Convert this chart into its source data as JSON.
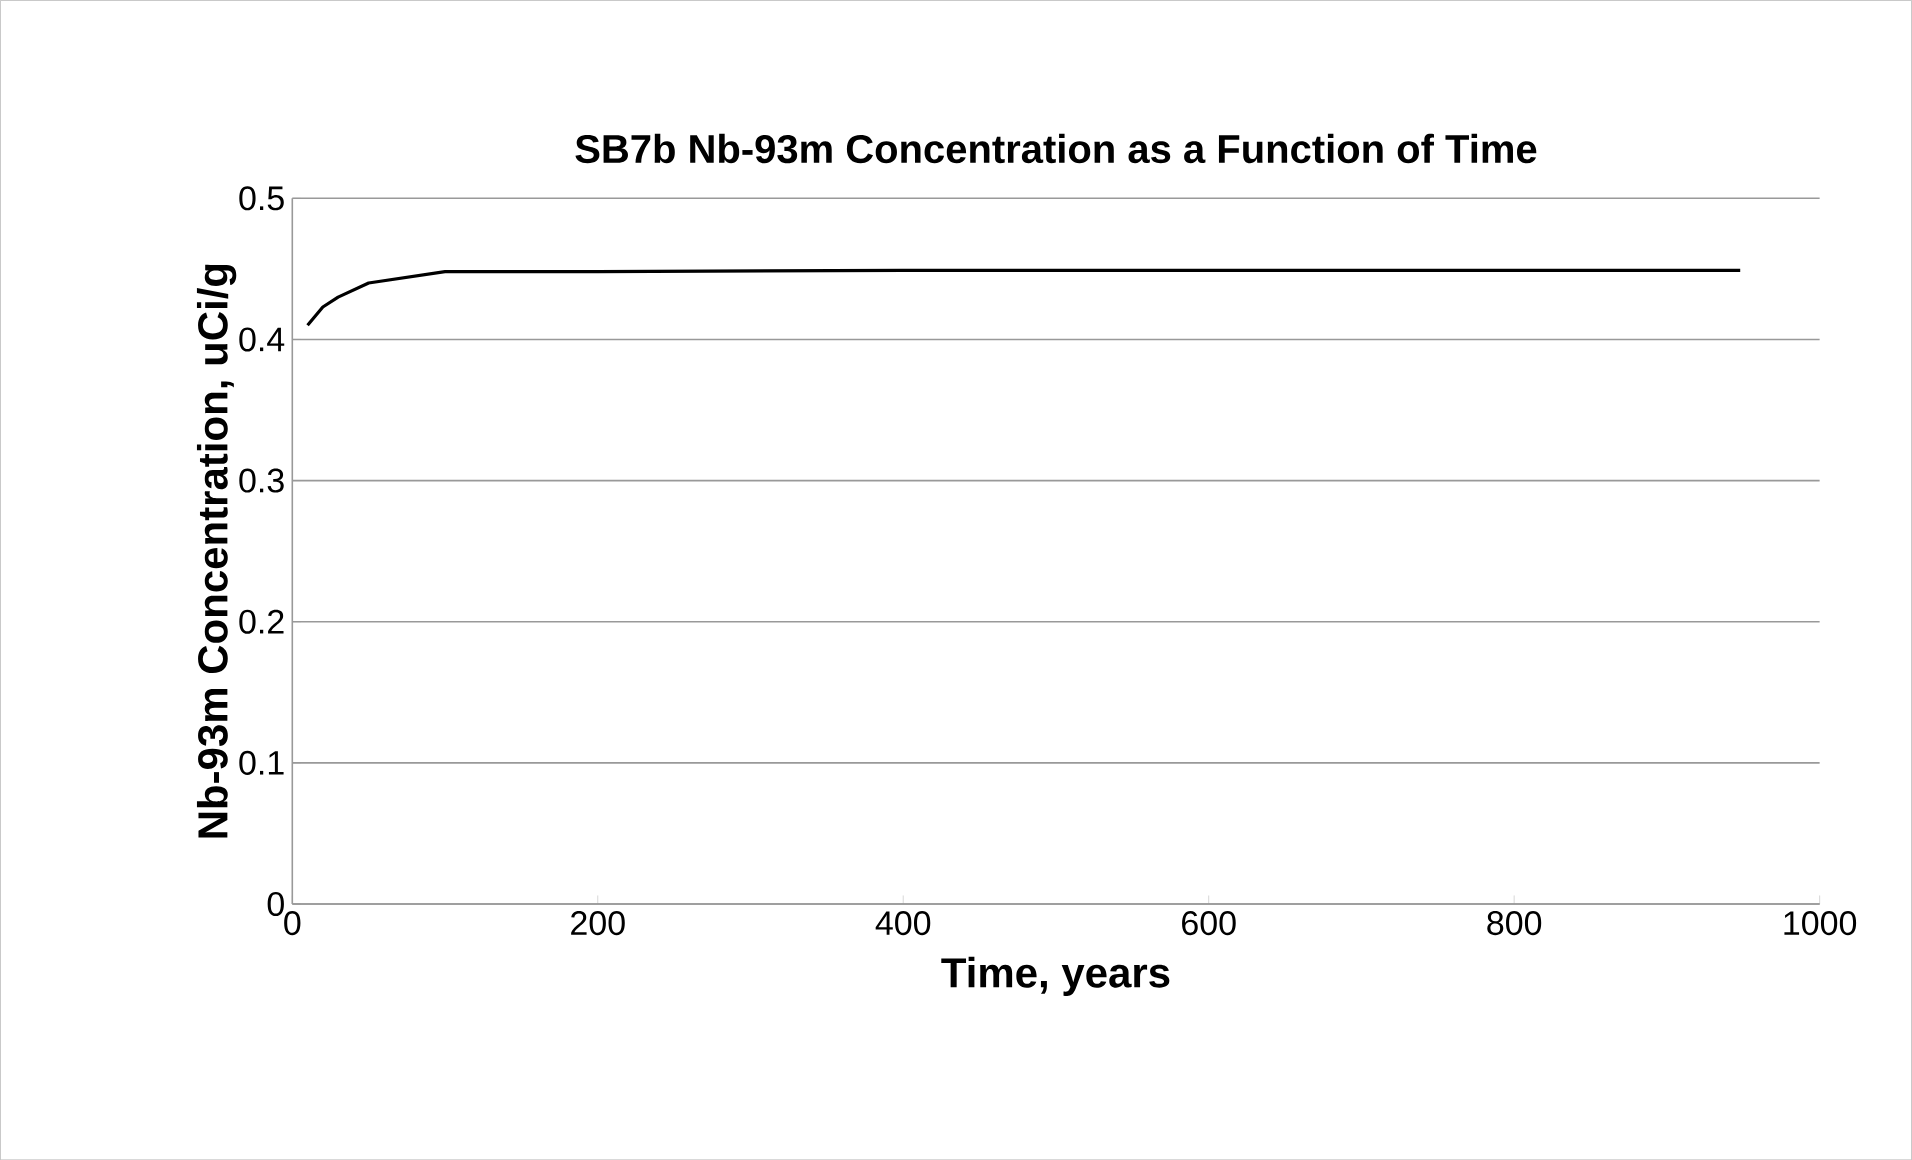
{
  "chart_data": {
    "type": "line",
    "title": "SB7b Nb-93m Concentration as  a Function of Time",
    "xlabel": "Time, years",
    "ylabel": "Nb-93m Concentration, uCi/g",
    "series": [
      {
        "color": "#000000",
        "x": [
          10,
          20,
          30,
          50,
          100,
          200,
          400,
          600,
          800,
          948
        ],
        "values": [
          0.41,
          0.423,
          0.43,
          0.44,
          0.448,
          0.448,
          0.449,
          0.449,
          0.449,
          0.449
        ]
      }
    ],
    "xlim": [
      0,
      1000
    ],
    "xticks": [
      0,
      200,
      400,
      600,
      800,
      1000
    ],
    "ylim": [
      0,
      0.5
    ],
    "yticks": [
      0,
      0.1,
      0.2,
      0.3,
      0.4,
      0.5
    ],
    "grid": "y",
    "marker": "none",
    "line_style": "solid"
  }
}
